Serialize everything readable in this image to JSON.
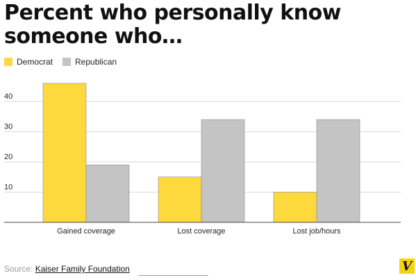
{
  "title": "Percent who personally know someone who…",
  "legend": [
    {
      "label": "Democrat",
      "color": "#fdd93d"
    },
    {
      "label": "Republican",
      "color": "#c4c4c4"
    }
  ],
  "source": {
    "prefix": "Source:",
    "name": "Kaiser Family Foundation"
  },
  "logo": {
    "letter": "V",
    "color": "#f5d311"
  },
  "chart_data": {
    "type": "bar",
    "categories": [
      "Gained coverage",
      "Lost coverage",
      "Lost job/hours"
    ],
    "series": [
      {
        "name": "Democrat",
        "values": [
          46,
          15,
          10
        ],
        "color": "#fdd93d"
      },
      {
        "name": "Republican",
        "values": [
          19,
          34,
          34
        ],
        "color": "#c4c4c4"
      }
    ],
    "yticks": [
      10,
      20,
      30,
      40
    ],
    "ylim": [
      0,
      50
    ],
    "grid": true,
    "legend_position": "top-left"
  }
}
